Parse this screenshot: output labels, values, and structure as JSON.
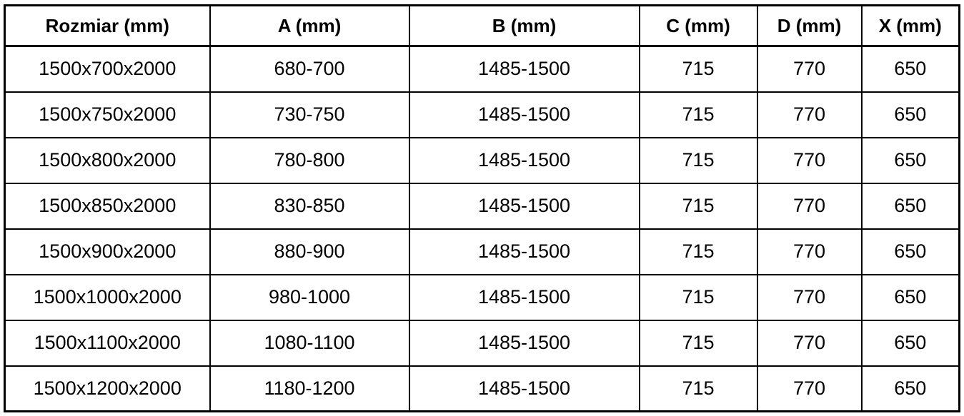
{
  "table": {
    "headers": [
      "Rozmiar (mm)",
      "A (mm)",
      "B (mm)",
      "C (mm)",
      "D (mm)",
      "X (mm)"
    ],
    "rows": [
      [
        "1500x700x2000",
        "680-700",
        "1485-1500",
        "715",
        "770",
        "650"
      ],
      [
        "1500x750x2000",
        "730-750",
        "1485-1500",
        "715",
        "770",
        "650"
      ],
      [
        "1500x800x2000",
        "780-800",
        "1485-1500",
        "715",
        "770",
        "650"
      ],
      [
        "1500x850x2000",
        "830-850",
        "1485-1500",
        "715",
        "770",
        "650"
      ],
      [
        "1500x900x2000",
        "880-900",
        "1485-1500",
        "715",
        "770",
        "650"
      ],
      [
        "1500x1000x2000",
        "980-1000",
        "1485-1500",
        "715",
        "770",
        "650"
      ],
      [
        "1500x1100x2000",
        "1080-1100",
        "1485-1500",
        "715",
        "770",
        "650"
      ],
      [
        "1500x1200x2000",
        "1180-1200",
        "1485-1500",
        "715",
        "770",
        "650"
      ]
    ]
  },
  "colors": {
    "border": "#000000",
    "text": "#000000",
    "background": "#ffffff"
  }
}
